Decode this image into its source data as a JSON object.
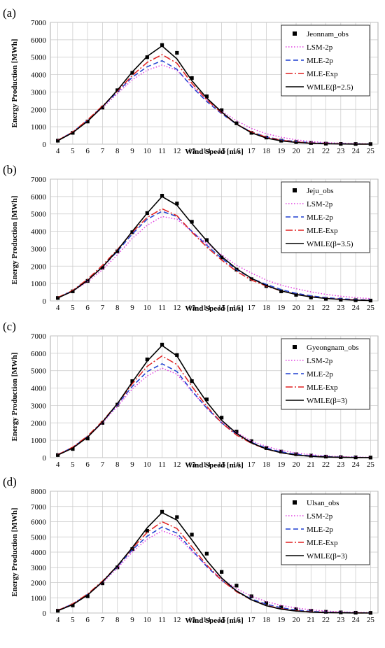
{
  "chart_data": [
    {
      "type": "line",
      "panel_label": "(a)",
      "xlabel": "Wind Speed [m/s]",
      "ylabel": "Energy Production [MWh]",
      "x": [
        4,
        5,
        6,
        7,
        8,
        9,
        10,
        11,
        12,
        13,
        14,
        15,
        16,
        17,
        18,
        19,
        20,
        21,
        22,
        23,
        24,
        25
      ],
      "ylim": [
        0,
        7000
      ],
      "yticks": [
        0,
        1000,
        2000,
        3000,
        4000,
        5000,
        6000,
        7000
      ],
      "grid": true,
      "legend_position": "top-right",
      "series": [
        {
          "name": "Jeonnam_obs",
          "style": "marker",
          "color": "#000000",
          "values": [
            200,
            650,
            1300,
            2100,
            3100,
            4100,
            5000,
            5700,
            5250,
            3800,
            2750,
            1950,
            1200,
            650,
            380,
            200,
            120,
            70,
            30,
            15,
            10,
            5
          ]
        },
        {
          "name": "LSM-2p",
          "style": "dotted",
          "color": "#e040e0",
          "values": [
            230,
            700,
            1350,
            2100,
            2900,
            3700,
            4250,
            4550,
            4250,
            3350,
            2550,
            1900,
            1350,
            900,
            600,
            400,
            250,
            150,
            90,
            55,
            35,
            20
          ]
        },
        {
          "name": "MLE-2p",
          "style": "dashed",
          "color": "#1f3fd0",
          "values": [
            210,
            690,
            1380,
            2170,
            3000,
            3850,
            4450,
            4800,
            4300,
            3300,
            2450,
            1750,
            1150,
            700,
            420,
            250,
            150,
            85,
            45,
            25,
            15,
            8
          ]
        },
        {
          "name": "MLE-Exp",
          "style": "dashdot",
          "color": "#e02020",
          "values": [
            220,
            700,
            1400,
            2200,
            3050,
            3950,
            4700,
            5150,
            4650,
            3500,
            2550,
            1800,
            1150,
            700,
            400,
            230,
            130,
            70,
            35,
            20,
            10,
            5
          ]
        },
        {
          "name": "WMLE(β=2.5)",
          "style": "solid",
          "color": "#000000",
          "values": [
            200,
            660,
            1320,
            2150,
            3100,
            4150,
            5050,
            5650,
            4900,
            3650,
            2650,
            1850,
            1150,
            650,
            350,
            190,
            100,
            50,
            25,
            12,
            6,
            3
          ]
        }
      ]
    },
    {
      "type": "line",
      "panel_label": "(b)",
      "xlabel": "Wind Speed [m/s]",
      "ylabel": "Energy Production [MWh]",
      "x": [
        4,
        5,
        6,
        7,
        8,
        9,
        10,
        11,
        12,
        13,
        14,
        15,
        16,
        17,
        18,
        19,
        20,
        21,
        22,
        23,
        24,
        25
      ],
      "ylim": [
        0,
        7000
      ],
      "yticks": [
        0,
        1000,
        2000,
        3000,
        4000,
        5000,
        6000,
        7000
      ],
      "grid": true,
      "legend_position": "top-right",
      "series": [
        {
          "name": "Jeju_obs",
          "style": "marker",
          "color": "#000000",
          "values": [
            170,
            550,
            1150,
            1900,
            2850,
            3950,
            5050,
            6050,
            5600,
            4550,
            3500,
            2500,
            1800,
            1250,
            850,
            550,
            350,
            200,
            120,
            70,
            40,
            20
          ]
        },
        {
          "name": "LSM-2p",
          "style": "dotted",
          "color": "#e040e0",
          "values": [
            180,
            560,
            1100,
            1800,
            2650,
            3600,
            4350,
            4850,
            4700,
            4000,
            3300,
            2650,
            2050,
            1600,
            1200,
            900,
            700,
            520,
            380,
            270,
            190,
            130
          ]
        },
        {
          "name": "MLE-2p",
          "style": "dashed",
          "color": "#1f3fd0",
          "values": [
            190,
            590,
            1200,
            1950,
            2850,
            3850,
            4700,
            5150,
            4850,
            4000,
            3200,
            2450,
            1800,
            1300,
            950,
            650,
            440,
            290,
            190,
            120,
            80,
            50
          ]
        },
        {
          "name": "MLE-Exp",
          "style": "dashdot",
          "color": "#e02020",
          "values": [
            200,
            600,
            1250,
            2050,
            2950,
            3950,
            4800,
            5300,
            4900,
            3950,
            3100,
            2350,
            1700,
            1200,
            850,
            580,
            380,
            240,
            150,
            90,
            55,
            30
          ]
        },
        {
          "name": "WMLE(β=3.5)",
          "style": "solid",
          "color": "#000000",
          "values": [
            170,
            560,
            1180,
            1950,
            2900,
            4000,
            5050,
            6000,
            5500,
            4450,
            3450,
            2550,
            1850,
            1300,
            880,
            580,
            370,
            230,
            140,
            80,
            45,
            25
          ]
        }
      ]
    },
    {
      "type": "line",
      "panel_label": "(c)",
      "xlabel": "Wind Speed [m/s]",
      "ylabel": "Energy Production [MWh]",
      "x": [
        4,
        5,
        6,
        7,
        8,
        9,
        10,
        11,
        12,
        13,
        14,
        15,
        16,
        17,
        18,
        19,
        20,
        21,
        22,
        23,
        24,
        25
      ],
      "ylim": [
        0,
        7000
      ],
      "yticks": [
        0,
        1000,
        2000,
        3000,
        4000,
        5000,
        6000,
        7000
      ],
      "grid": true,
      "legend_position": "top-right",
      "series": [
        {
          "name": "Gyeongnam_obs",
          "style": "marker",
          "color": "#000000",
          "values": [
            150,
            500,
            1100,
            2000,
            3050,
            4400,
            5650,
            6500,
            5900,
            4400,
            3350,
            2300,
            1500,
            950,
            550,
            350,
            200,
            120,
            60,
            30,
            15,
            5
          ]
        },
        {
          "name": "LSM-2p",
          "style": "dotted",
          "color": "#e040e0",
          "values": [
            180,
            600,
            1200,
            2000,
            2950,
            3950,
            4700,
            5150,
            4800,
            3800,
            2850,
            2050,
            1450,
            950,
            650,
            420,
            270,
            170,
            100,
            60,
            35,
            20
          ]
        },
        {
          "name": "MLE-2p",
          "style": "dashed",
          "color": "#1f3fd0",
          "values": [
            170,
            590,
            1220,
            2050,
            3050,
            4100,
            4950,
            5400,
            4950,
            3850,
            2850,
            2000,
            1350,
            880,
            550,
            330,
            190,
            110,
            60,
            30,
            15,
            8
          ]
        },
        {
          "name": "MLE-Exp",
          "style": "dashdot",
          "color": "#e02020",
          "values": [
            170,
            600,
            1250,
            2100,
            3100,
            4250,
            5250,
            5850,
            5350,
            4100,
            2950,
            2000,
            1300,
            820,
            490,
            280,
            150,
            80,
            40,
            20,
            10,
            5
          ]
        },
        {
          "name": "WMLE(β=3)",
          "style": "solid",
          "color": "#000000",
          "values": [
            150,
            550,
            1180,
            2050,
            3100,
            4350,
            5550,
            6450,
            5850,
            4450,
            3200,
            2150,
            1400,
            850,
            500,
            280,
            150,
            75,
            35,
            15,
            7,
            3
          ]
        }
      ]
    },
    {
      "type": "line",
      "panel_label": "(d)",
      "xlabel": "Wind Speed [m/s]",
      "ylabel": "Energy Production [MWh]",
      "x": [
        4,
        5,
        6,
        7,
        8,
        9,
        10,
        11,
        12,
        13,
        14,
        15,
        16,
        17,
        18,
        19,
        20,
        21,
        22,
        23,
        24,
        25
      ],
      "ylim": [
        0,
        8000
      ],
      "yticks": [
        0,
        1000,
        2000,
        3000,
        4000,
        5000,
        6000,
        7000,
        8000
      ],
      "grid": true,
      "legend_position": "top-right",
      "series": [
        {
          "name": "Ulsan_obs",
          "style": "marker",
          "color": "#000000",
          "values": [
            150,
            500,
            1100,
            1950,
            3000,
            4200,
            5400,
            6650,
            6300,
            5150,
            3900,
            2700,
            1800,
            1100,
            650,
            380,
            250,
            150,
            80,
            40,
            20,
            10
          ]
        },
        {
          "name": "LSM-2p",
          "style": "dotted",
          "color": "#e040e0",
          "values": [
            180,
            600,
            1200,
            2000,
            2950,
            4000,
            4850,
            5400,
            5050,
            4050,
            3100,
            2250,
            1600,
            1100,
            750,
            500,
            330,
            210,
            130,
            80,
            45,
            25
          ]
        },
        {
          "name": "MLE-2p",
          "style": "dashed",
          "color": "#1f3fd0",
          "values": [
            170,
            590,
            1220,
            2050,
            3050,
            4150,
            5050,
            5650,
            5250,
            4150,
            3050,
            2150,
            1450,
            920,
            580,
            350,
            200,
            110,
            60,
            30,
            15,
            8
          ]
        },
        {
          "name": "MLE-Exp",
          "style": "dashdot",
          "color": "#e02020",
          "values": [
            170,
            600,
            1250,
            2100,
            3100,
            4250,
            5300,
            6000,
            5550,
            4350,
            3150,
            2150,
            1400,
            860,
            500,
            280,
            150,
            80,
            40,
            20,
            10,
            5
          ]
        },
        {
          "name": "WMLE(β=3)",
          "style": "solid",
          "color": "#000000",
          "values": [
            150,
            550,
            1180,
            2050,
            3100,
            4300,
            5600,
            6600,
            6100,
            4800,
            3450,
            2300,
            1450,
            870,
            480,
            250,
            130,
            60,
            28,
            12,
            5,
            2
          ]
        }
      ]
    }
  ]
}
